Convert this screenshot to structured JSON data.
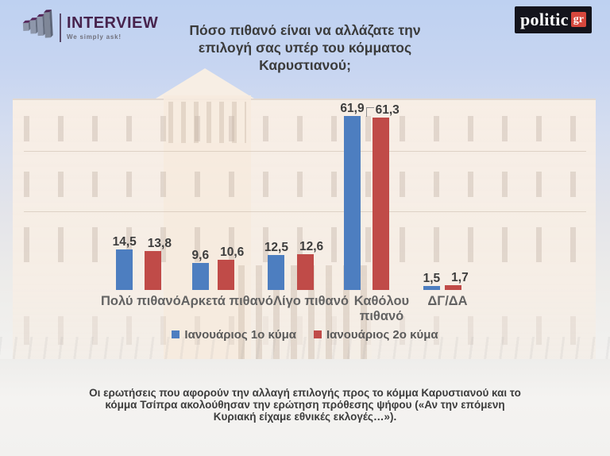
{
  "header": {
    "interview_logo": {
      "name": "INTERVIEW",
      "tagline": "We simply ask!",
      "icon": "ascending-3d-bars-icon"
    },
    "politic_logo": {
      "name": "politic",
      "suffix": "gr"
    }
  },
  "title": "Πόσο πιθανό είναι να αλλάζατε την επιλογή σας υπέρ του κόμματος Καρυστιανού;",
  "chart_data": {
    "type": "bar",
    "title": "Πόσο πιθανό είναι να αλλάζατε την επιλογή σας υπέρ του κόμματος Καρυστιανού;",
    "categories": [
      "Πολύ πιθανό",
      "Αρκετά πιθανό",
      "Λίγο πιθανό",
      "Καθόλου πιθανό",
      "ΔΓ/ΔΑ"
    ],
    "series": [
      {
        "name": "Ιανουάριος 1ο κύμα",
        "color": "#4d7ec0",
        "values": [
          14.5,
          9.6,
          12.5,
          61.9,
          1.5
        ],
        "labels": [
          "14,5",
          "9,6",
          "12,5",
          "61,9",
          "1,5"
        ]
      },
      {
        "name": "Ιανουάριος 2ο κύμα",
        "color": "#c04b48",
        "values": [
          13.8,
          10.6,
          12.6,
          61.3,
          1.7
        ],
        "labels": [
          "13,8",
          "10,6",
          "12,6",
          "61,3",
          "1,7"
        ]
      }
    ],
    "ylim": [
      0,
      70
    ],
    "grid": false,
    "axis_lines": false,
    "legend_position": "bottom",
    "value_label_format": "decimal-comma"
  },
  "footnote": "Οι ερωτήσεις που αφορούν την αλλαγή επιλογής προς το κόμμα Καρυστιανού και το κόμμα Τσίπρα ακολούθησαν την ερώτηση πρόθεσης ψήφου («Αν την επόμενη Κυριακή είχαμε εθνικές εκλογές…»)."
}
